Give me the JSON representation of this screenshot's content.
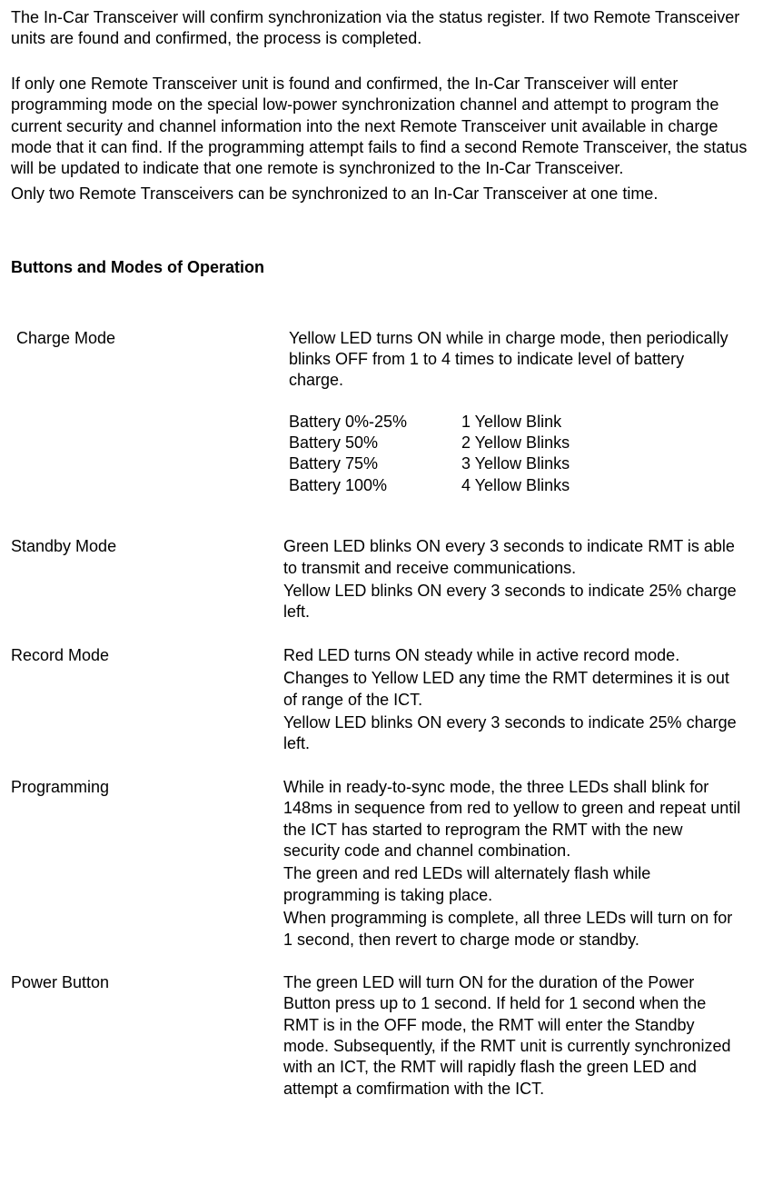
{
  "intro": {
    "p1": "The In-Car Transceiver will confirm synchronization via the status register.   If two Remote Transceiver units are found and confirmed, the process is completed.",
    "p2": "If only one Remote Transceiver unit is found and confirmed, the In-Car Transceiver will enter programming mode on the special low-power synchronization channel and attempt to program the current security and channel information into the next Remote Transceiver unit available in charge mode that it can find.  If the programming attempt fails to find a second Remote Transceiver, the status will be updated to indicate that one remote is synchronized to the In-Car Transceiver.",
    "p3": "Only two Remote Transceivers can be synchronized to an In-Car Transceiver at one time."
  },
  "heading": "Buttons and Modes of Operation",
  "charge": {
    "label": "Charge Mode",
    "desc": "Yellow LED turns ON while in charge mode, then periodically blinks OFF from 1 to 4 times to indicate level of battery charge.",
    "rows": [
      {
        "level": "Battery 0%-25%",
        "blinks": "1 Yellow Blink"
      },
      {
        "level": "Battery 50%",
        "blinks": " 2 Yellow Blinks"
      },
      {
        "level": "Battery 75%",
        "blinks": " 3 Yellow Blinks"
      },
      {
        "level": "Battery 100%",
        "blinks": " 4 Yellow Blinks"
      }
    ]
  },
  "standby": {
    "label": "Standby Mode",
    "l1": "Green LED blinks ON every 3 seconds to indicate RMT is able to transmit and receive communications.",
    "l2": "Yellow LED blinks ON every 3 seconds to indicate 25% charge left."
  },
  "record": {
    "label": "Record Mode",
    "l1": "Red LED turns ON steady while in active record mode.",
    "l2": "Changes to Yellow LED any time the RMT determines it is out of range of the ICT.",
    "l3": "Yellow LED blinks ON every 3 seconds to indicate 25% charge left."
  },
  "programming": {
    "label": "Programming",
    "l1": "While in ready-to-sync mode, the three LEDs shall blink for 148ms in sequence from red to yellow to green and repeat until the ICT has started to reprogram the RMT with the new security code and channel combination.",
    "l2": "The green and red LEDs will alternately flash while programming is taking place.",
    "l3": "When programming is complete, all three LEDs will turn on for 1 second, then revert to charge mode or standby."
  },
  "power": {
    "label": "Power Button",
    "l1": "The green LED will turn ON for the duration of the Power Button press up to 1 second.       If held for 1 second when the RMT is in the OFF mode, the RMT will enter the Standby mode.   Subsequently, if the RMT unit is currently synchronized with an ICT, the RMT will rapidly flash the green LED and attempt a comfirmation with the ICT."
  }
}
